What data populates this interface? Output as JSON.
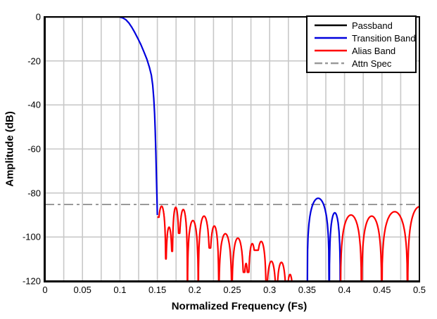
{
  "chart_data": {
    "type": "line",
    "title": "",
    "xlabel": "Normalized Frequency (Fs)",
    "ylabel": "Amplitude (dB)",
    "xlim": [
      0,
      0.5
    ],
    "ylim": [
      -120,
      0
    ],
    "xticks": [
      0,
      0.05,
      0.1,
      0.15,
      0.2,
      0.25,
      0.3,
      0.35,
      0.4,
      0.45,
      0.5
    ],
    "xtick_labels": [
      "0",
      "0.05",
      "0.1",
      "0.15",
      "0.2",
      "0.25",
      "0.3",
      "0.35",
      "0.4",
      "0.45",
      "0.5"
    ],
    "yticks": [
      0,
      -20,
      -40,
      -60,
      -80,
      -100,
      -120
    ],
    "ytick_labels": [
      "0",
      "-20",
      "-40",
      "-60",
      "-80",
      "-100",
      "-120"
    ],
    "x_minor_grid_step": 0.025,
    "y_grid_step": 20,
    "grid_on": true,
    "grid_color": "#c8c8c8",
    "attn_spec_db": -85.2,
    "legend": {
      "position": "top-right",
      "items": [
        {
          "label": "Passband",
          "color": "#000000",
          "dash": "none"
        },
        {
          "label": "Transition Band",
          "color": "#0000dd",
          "dash": "none"
        },
        {
          "label": "Alias Band",
          "color": "#ff0000",
          "dash": "none"
        },
        {
          "label": "Attn Spec",
          "color": "#9a9a9a",
          "dash": "13 5 4 5"
        }
      ]
    },
    "series": [
      {
        "name": "Passband",
        "color": "#000000",
        "width": 2.2,
        "parts": [
          {
            "points": [
              [
                0,
                -0.05
              ],
              [
                0.1,
                -0.05
              ]
            ]
          }
        ]
      },
      {
        "name": "Attn Spec",
        "color": "#9a9a9a",
        "width": 2,
        "dash": "13 5 4 5",
        "parts": [
          {
            "points": [
              [
                0,
                -85.2
              ],
              [
                0.5,
                -85.2
              ]
            ]
          }
        ]
      },
      {
        "name": "Transition Band",
        "color": "#0000dd",
        "width": 2.2,
        "parts": [
          {
            "points": [
              [
                0.1,
                -0.1
              ],
              [
                0.104,
                -0.5
              ],
              [
                0.108,
                -1.3
              ],
              [
                0.112,
                -2.8
              ],
              [
                0.116,
                -4.8
              ],
              [
                0.12,
                -7.2
              ],
              [
                0.124,
                -9.8
              ],
              [
                0.128,
                -12.6
              ],
              [
                0.132,
                -15.8
              ],
              [
                0.136,
                -19.2
              ],
              [
                0.1395,
                -23
              ],
              [
                0.142,
                -26.5
              ],
              [
                0.1438,
                -31
              ],
              [
                0.1452,
                -37
              ],
              [
                0.1463,
                -44
              ],
              [
                0.1472,
                -52
              ],
              [
                0.148,
                -62
              ],
              [
                0.1488,
                -73
              ],
              [
                0.1495,
                -83
              ],
              [
                0.15,
                -90
              ]
            ]
          },
          {
            "lobes": [
              [
                0.35,
                0.3796,
                -82.4
              ],
              [
                0.3796,
                0.3944,
                -89
              ]
            ]
          }
        ]
      },
      {
        "name": "Alias Band",
        "color": "#ff0000",
        "width": 2.2,
        "parts": [
          {
            "lobes": [
              [
                0.15,
                0.1613,
                -86,
                -91,
                -110
              ],
              [
                0.1613,
                0.17,
                -95.5,
                -110,
                -106.5
              ],
              [
                0.17,
                0.179,
                -86.5,
                -106.5,
                -98.3
              ],
              [
                0.179,
                0.1902,
                -87.5,
                -98.3,
                -140
              ],
              [
                0.1902,
                0.2047,
                -92.5
              ],
              [
                0.2047,
                0.22,
                -90.5,
                -140,
                -105
              ],
              [
                0.22,
                0.2321,
                -95,
                -105,
                -140
              ],
              [
                0.2321,
                0.2495,
                -98.5
              ],
              [
                0.2495,
                0.2655,
                -100.5,
                -140,
                -116
              ],
              [
                0.2655,
                0.2715,
                -112,
                -116,
                -116
              ],
              [
                0.2715,
                0.282,
                -103,
                -116,
                -106
              ],
              [
                0.282,
                0.2955,
                -102,
                -106,
                -140
              ],
              [
                0.2955,
                0.309,
                -111
              ],
              [
                0.309,
                0.3224,
                -111.5
              ],
              [
                0.3224,
                0.332,
                -117
              ]
            ]
          },
          {
            "lobes": [
              [
                0.3944,
                0.4228,
                -90
              ],
              [
                0.4228,
                0.4497,
                -90.5
              ],
              [
                0.4497,
                0.4843,
                -88.5
              ],
              [
                0.4843,
                0.5165,
                -86.2
              ]
            ]
          }
        ]
      }
    ]
  }
}
